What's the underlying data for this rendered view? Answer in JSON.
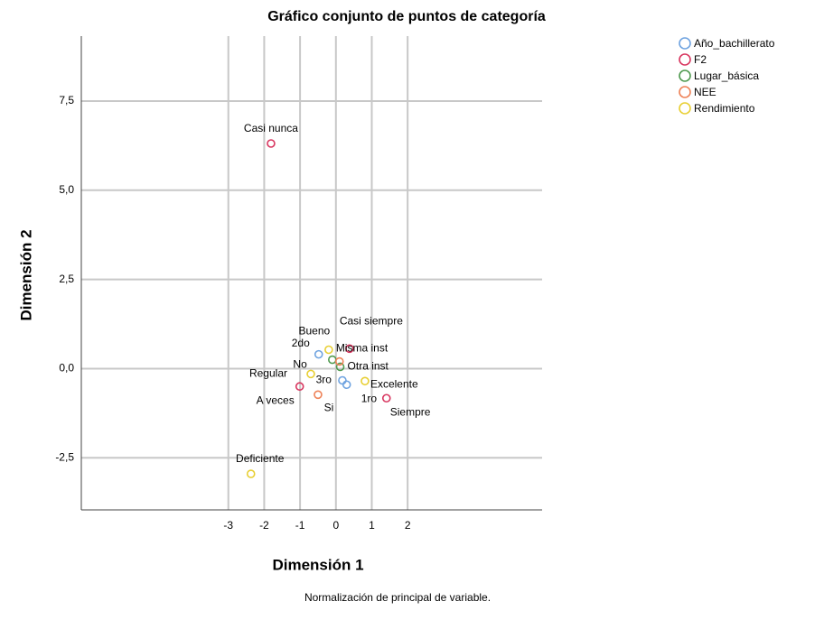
{
  "chart_data": {
    "type": "scatter",
    "title": "Gráfico conjunto de puntos de categoría",
    "xlabel": "Dimensión 1",
    "ylabel": "Dimensión 2",
    "note": "Normalización de principal de variable.",
    "xlim": [
      -7.1,
      5.75
    ],
    "ylim": [
      -3.96,
      9.32
    ],
    "xticks": [
      -3,
      -2,
      -1,
      0,
      1,
      2
    ],
    "yticks": [
      {
        "value": 7.5,
        "label": "7,5"
      },
      {
        "value": 5.0,
        "label": "5,0"
      },
      {
        "value": 2.5,
        "label": "2,5"
      },
      {
        "value": 0,
        "label": "0,0"
      },
      {
        "value": -2.5,
        "label": "-2,5"
      }
    ],
    "grid": true,
    "legend": "outside-right",
    "series": [
      {
        "name": "Año_bachillerato",
        "color": "#6fa3e0",
        "x": [
          -0.48,
          0.18,
          0.3
        ],
        "values": [
          0.4,
          -0.33,
          -0.45
        ],
        "labels": [
          "2do",
          "3ro",
          "1ro"
        ]
      },
      {
        "name": "F2",
        "color": "#d8365f",
        "x": [
          -1.81,
          -1.01,
          0.38,
          1.41
        ],
        "values": [
          6.31,
          -0.5,
          0.56,
          -0.83
        ],
        "labels": [
          "Casi nunca",
          "A veces",
          "Casi siempre",
          "Siempre"
        ]
      },
      {
        "name": "Lugar_básica",
        "color": "#4f9a4f",
        "x": [
          -0.1,
          0.12
        ],
        "values": [
          0.25,
          0.05
        ],
        "labels": [
          "Misma inst",
          "Otra inst"
        ]
      },
      {
        "name": "NEE",
        "color": "#ee8257",
        "x": [
          0.1,
          -0.5
        ],
        "values": [
          0.2,
          -0.73
        ],
        "labels": [
          "No",
          "Si"
        ]
      },
      {
        "name": "Rendimiento",
        "color": "#e8cf33",
        "x": [
          -0.2,
          -0.7,
          0.81,
          -2.37
        ],
        "values": [
          0.53,
          -0.15,
          -0.35,
          -2.95
        ],
        "labels": [
          "Bueno",
          "Regular",
          "Excelente",
          "Deficiente"
        ]
      }
    ]
  }
}
